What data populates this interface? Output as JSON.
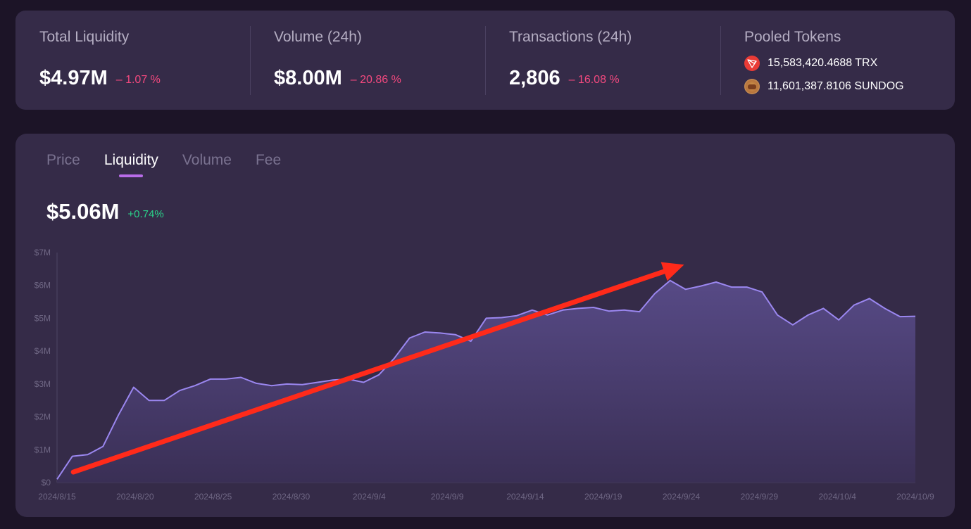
{
  "stats": [
    {
      "label": "Total Liquidity",
      "value": "$4.97M",
      "change": "– 1.07 %"
    },
    {
      "label": "Volume (24h)",
      "value": "$8.00M",
      "change": "– 20.86 %"
    },
    {
      "label": "Transactions (24h)",
      "value": "2,806",
      "change": "– 16.08 %"
    }
  ],
  "pooled": {
    "label": "Pooled Tokens",
    "tokens": [
      {
        "text": "15,583,420.4688 TRX",
        "icon": "trx-token-icon"
      },
      {
        "text": "11,601,387.8106 SUNDOG",
        "icon": "sundog-token-icon"
      }
    ]
  },
  "tabs": [
    {
      "label": "Price",
      "active": false
    },
    {
      "label": "Liquidity",
      "active": true
    },
    {
      "label": "Volume",
      "active": false
    },
    {
      "label": "Fee",
      "active": false
    }
  ],
  "current": {
    "value": "$5.06M",
    "change": "+0.74%"
  },
  "colors": {
    "accent": "#b86ce8",
    "line": "#9b87f0",
    "area_top": "#574a86",
    "area_bottom": "#3a2f55",
    "negative": "#f4497f",
    "positive": "#2bd38a",
    "annotation_arrow": "#ff2a1a"
  },
  "chart_data": {
    "type": "area",
    "ylabel": "",
    "ylim": [
      0,
      7
    ],
    "y_ticks": [
      "$0",
      "$1M",
      "$2M",
      "$3M",
      "$4M",
      "$5M",
      "$6M",
      "$7M"
    ],
    "x_ticks": [
      "2024/8/15",
      "2024/8/20",
      "2024/8/25",
      "2024/8/30",
      "2024/9/4",
      "2024/9/9",
      "2024/9/14",
      "2024/9/19",
      "2024/9/24",
      "2024/9/29",
      "2024/10/4",
      "2024/10/9"
    ],
    "x_start": "2024/8/15",
    "x_end": "2024/10/9",
    "series": [
      {
        "values": [
          0.1,
          0.8,
          0.85,
          1.1,
          2.05,
          2.9,
          2.5,
          2.5,
          2.8,
          2.95,
          3.15,
          3.15,
          3.2,
          3.02,
          2.95,
          3.0,
          2.98,
          3.05,
          3.12,
          3.15,
          3.05,
          3.28,
          3.78,
          4.4,
          4.58,
          4.55,
          4.5,
          4.3,
          5.0,
          5.02,
          5.08,
          5.25,
          5.1,
          5.25,
          5.3,
          5.33,
          5.22,
          5.25,
          5.2,
          5.75,
          6.15,
          5.88,
          5.98,
          6.1,
          5.95,
          5.95,
          5.8,
          5.1,
          4.8,
          5.1,
          5.3,
          4.95,
          5.4,
          5.6,
          5.3,
          5.05,
          5.06
        ]
      }
    ],
    "annotation": "red arrow trending upward from 2024/8/16 to about 2024/9/24"
  }
}
